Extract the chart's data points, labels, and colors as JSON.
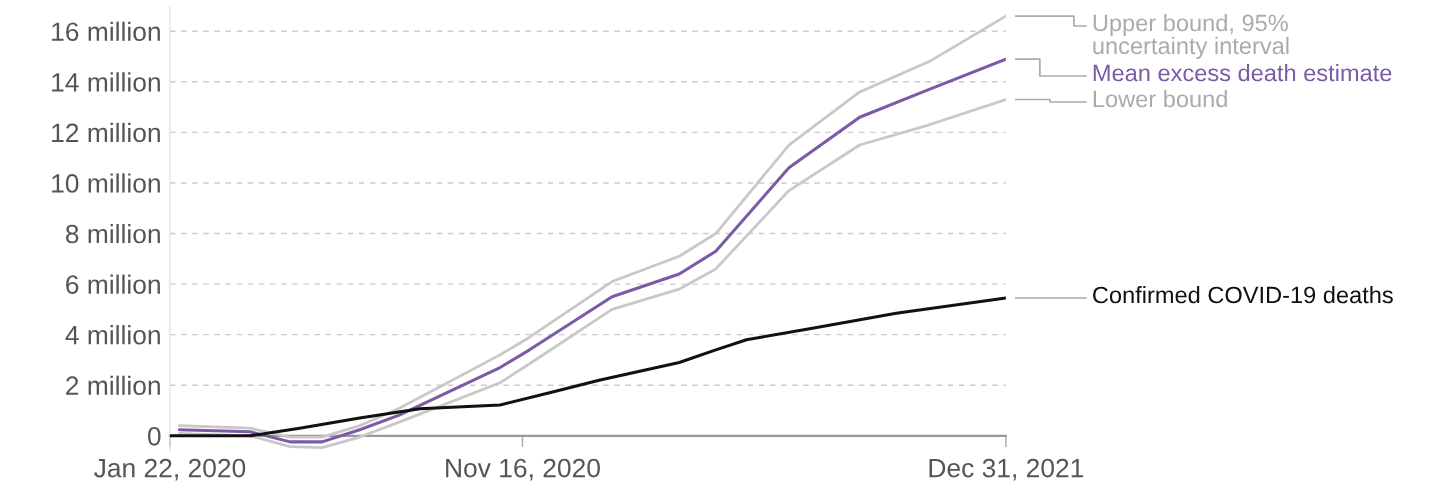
{
  "chart_data": {
    "type": "line",
    "x": [
      "2020-01-30",
      "2020-03-30",
      "2020-05-03",
      "2020-05-30",
      "2020-07-01",
      "2020-08-04",
      "2020-10-28",
      "2020-11-22",
      "2021-01-31",
      "2021-03-29",
      "2021-04-29",
      "2021-06-30",
      "2021-08-29",
      "2021-10-27",
      "2021-12-31"
    ],
    "series": [
      {
        "name": "Upper bound, 95%\nuncertainty interval",
        "color": "#c8c8c8",
        "values": [
          400000,
          300000,
          -50000,
          -50000,
          400000,
          1100000,
          3200000,
          3900000,
          6100000,
          7100000,
          8000000,
          11500000,
          13600000,
          14800000,
          16600000
        ]
      },
      {
        "name": "Mean excess death estimate",
        "color": "#7b5aa6",
        "values": [
          240000,
          160000,
          -240000,
          -240000,
          240000,
          830000,
          2700000,
          3400000,
          5500000,
          6400000,
          7300000,
          10600000,
          12600000,
          13700000,
          14900000
        ]
      },
      {
        "name": "Lower bound",
        "color": "#c8c8c8",
        "values": [
          100000,
          0,
          -430000,
          -470000,
          -50000,
          550000,
          2100000,
          2850000,
          5000000,
          5800000,
          6600000,
          9700000,
          11500000,
          12300000,
          13300000
        ]
      },
      {
        "name": "Confirmed COVID-19 deaths",
        "color": "#111111",
        "x": [
          "2020-01-22",
          "2020-03-30",
          "2020-05-11",
          "2020-07-01",
          "2020-08-21",
          "2020-10-28",
          "2020-12-09",
          "2021-01-20",
          "2021-03-29",
          "2021-04-29",
          "2021-05-25",
          "2021-07-20",
          "2021-09-29",
          "2021-12-31"
        ],
        "values": [
          0,
          0,
          300000,
          700000,
          1070000,
          1220000,
          1700000,
          2200000,
          2900000,
          3400000,
          3800000,
          4250000,
          4850000,
          5450000
        ]
      }
    ],
    "xlim": [
      "2020-01-22",
      "2021-12-31"
    ],
    "xticks": [
      {
        "value": "2020-01-22",
        "label": "Jan 22, 2020"
      },
      {
        "value": "2020-11-16",
        "label": "Nov 16, 2020"
      },
      {
        "value": "2021-12-31",
        "label": "Dec 31, 2021"
      }
    ],
    "ylim": [
      -600000,
      17000000
    ],
    "yticks": [
      {
        "value": 0,
        "label": "0"
      },
      {
        "value": 2000000,
        "label": "2 million"
      },
      {
        "value": 4000000,
        "label": "4 million"
      },
      {
        "value": 6000000,
        "label": "6 million"
      },
      {
        "value": 8000000,
        "label": "8 million"
      },
      {
        "value": 10000000,
        "label": "10 million"
      },
      {
        "value": 12000000,
        "label": "12 million"
      },
      {
        "value": 14000000,
        "label": "14 million"
      },
      {
        "value": 16000000,
        "label": "16 million"
      }
    ],
    "grid": "y",
    "legend": false
  }
}
